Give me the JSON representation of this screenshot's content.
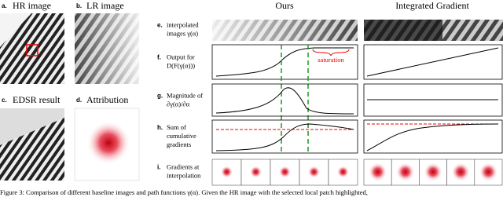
{
  "panels": [
    {
      "letter": "a.",
      "title": "HR image"
    },
    {
      "letter": "b.",
      "title": "LR image"
    },
    {
      "letter": "c.",
      "title": "EDSR result"
    },
    {
      "letter": "d.",
      "title": "Attribution"
    }
  ],
  "columns": [
    "Ours",
    "Integrated Gradient"
  ],
  "rows": [
    {
      "letter": "e.",
      "lines": [
        "interpolated",
        "images γ(α)"
      ]
    },
    {
      "letter": "f.",
      "lines": [
        "Output for",
        "D(F(γ(α)))"
      ]
    },
    {
      "letter": "g.",
      "lines": [
        "Magnitude of",
        "∂γ(α)/∂α"
      ]
    },
    {
      "letter": "h.",
      "lines": [
        "Sum of",
        "cumulative",
        "gradients"
      ]
    },
    {
      "letter": "i.",
      "lines": [
        "Gradients at",
        "interpolation"
      ]
    }
  ],
  "annotation": "saturation",
  "caption": "Figure 3: Comparison of different baseline images and path functions γ(α). Given the HR image with the selected local patch highlighted,"
}
